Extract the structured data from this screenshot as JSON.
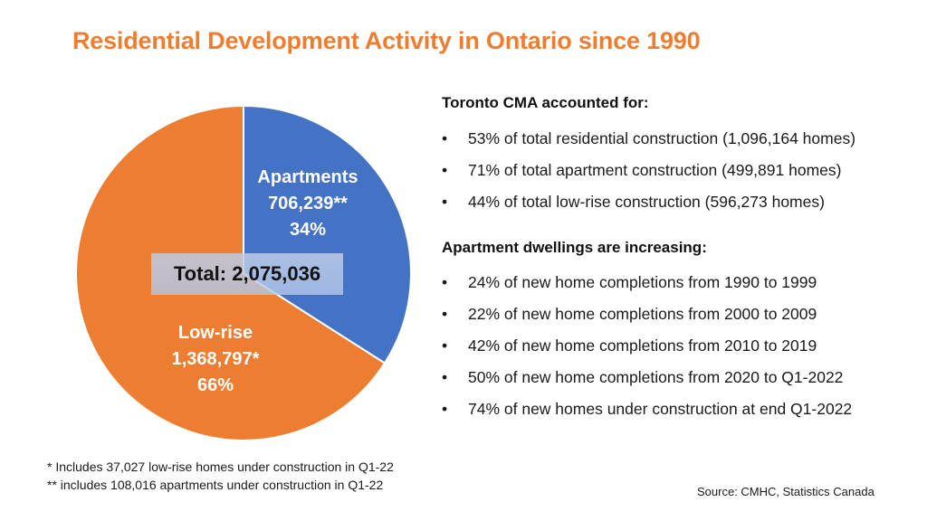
{
  "title": "Residential Development Activity in Ontario since 1990",
  "chart_data": {
    "type": "pie",
    "title": "Residential Development Activity in Ontario since 1990",
    "total_label": "Total: 2,075,036",
    "total": 2075036,
    "slices": [
      {
        "name": "Apartments",
        "value": 706239,
        "value_label": "706,239**",
        "percent": 34,
        "percent_label": "34%",
        "color": "#4472c4"
      },
      {
        "name": "Low-rise",
        "value": 1368797,
        "value_label": "1,368,797*",
        "percent": 66,
        "percent_label": "66%",
        "color": "#ed7d31"
      }
    ],
    "start_angle": "12 o'clock, clockwise"
  },
  "panel": {
    "section1": {
      "heading": "Toronto CMA accounted for:",
      "bullets": [
        "53% of total residential construction (1,096,164 homes)",
        "71% of total apartment construction (499,891 homes)",
        "44% of total low-rise construction (596,273 homes)"
      ]
    },
    "section2": {
      "heading": "Apartment dwellings are increasing:",
      "bullets": [
        "24% of new home completions from 1990 to 1999",
        "22% of new home completions from 2000 to 2009",
        "42% of new home completions from 2010 to 2019",
        "50% of new home completions from 2020 to Q1-2022",
        "74% of new homes under construction at end Q1-2022"
      ]
    },
    "bullet_glyph": "•"
  },
  "footnotes": [
    "* Includes  37,027 low-rise homes under construction in Q1-22",
    "** includes 108,016 apartments under construction in Q1-22"
  ],
  "source": "Source: CMHC, Statistics Canada"
}
